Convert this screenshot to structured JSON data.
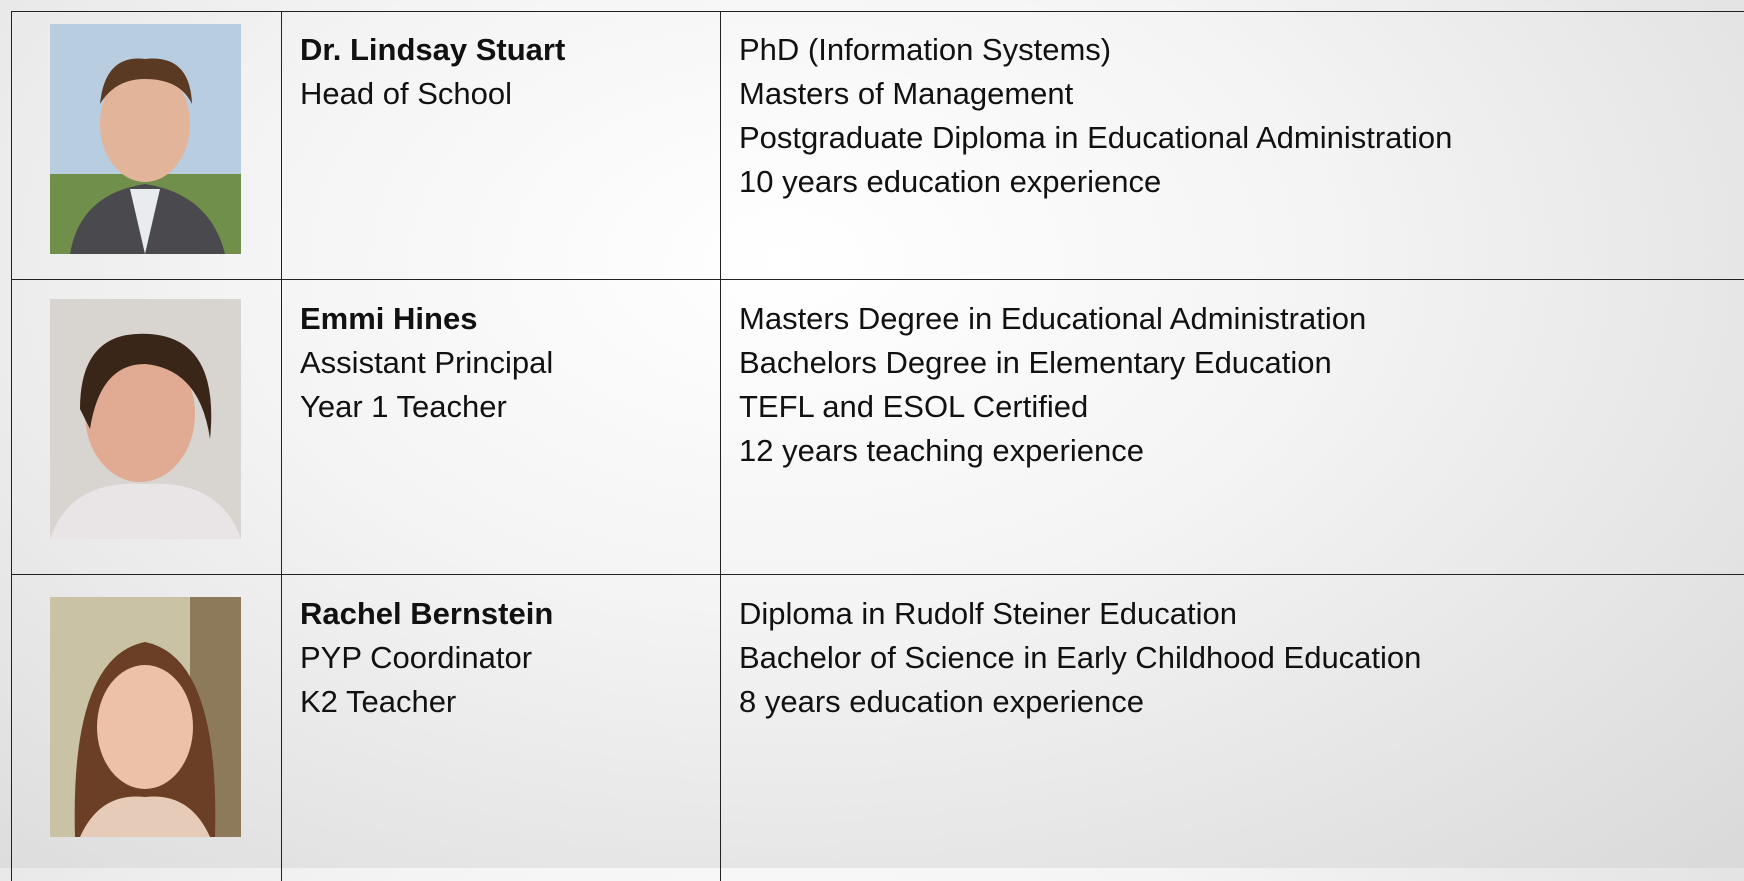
{
  "staff": [
    {
      "name": "Dr. Lindsay Stuart",
      "roles": [
        "Head of School"
      ],
      "qualifications": [
        "PhD (Information Systems)",
        "Masters of Management",
        "Postgraduate Diploma in Educational Administration",
        "10 years education experience"
      ]
    },
    {
      "name": "Emmi Hines",
      "roles": [
        "Assistant Principal",
        "Year 1 Teacher"
      ],
      "qualifications": [
        "Masters Degree in Educational Administration",
        "Bachelors Degree in Elementary Education",
        "TEFL and ESOL Certified",
        "12 years teaching experience"
      ]
    },
    {
      "name": "Rachel Bernstein",
      "roles": [
        "PYP Coordinator",
        "K2 Teacher"
      ],
      "qualifications": [
        "Diploma in Rudolf Steiner Education",
        "Bachelor of Science in Early Childhood Education",
        "8 years education experience"
      ]
    }
  ]
}
